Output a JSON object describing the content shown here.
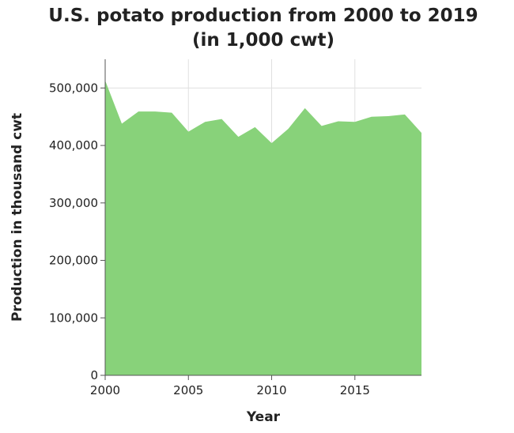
{
  "chart_data": {
    "type": "area",
    "title_lines": [
      "U.S. potato production from 2000 to 2019",
      "(in 1,000 cwt)"
    ],
    "xlabel": "Year",
    "ylabel": "Production in thousand cwt",
    "x": [
      2000,
      2001,
      2002,
      2003,
      2004,
      2005,
      2006,
      2007,
      2008,
      2009,
      2010,
      2011,
      2012,
      2013,
      2014,
      2015,
      2016,
      2017,
      2018,
      2019
    ],
    "values": [
      513000,
      438000,
      459000,
      459000,
      457000,
      424000,
      441000,
      446000,
      415000,
      432000,
      404000,
      429000,
      465000,
      434000,
      442000,
      441000,
      450000,
      451000,
      454000,
      422000
    ],
    "xlim": [
      2000,
      2019
    ],
    "ylim": [
      0,
      550000
    ],
    "xticks": [
      2000,
      2005,
      2010,
      2015
    ],
    "yticks": [
      0,
      100000,
      200000,
      300000,
      400000,
      500000
    ],
    "xtick_labels": [
      "2000",
      "2005",
      "2010",
      "2015"
    ],
    "ytick_labels": [
      "0",
      "100,000",
      "200,000",
      "300,000",
      "400,000",
      "500,000"
    ],
    "grid": true,
    "fill_color": "#88d27a",
    "grid_color": "#e0e0e0",
    "axis_color": "#555555"
  }
}
